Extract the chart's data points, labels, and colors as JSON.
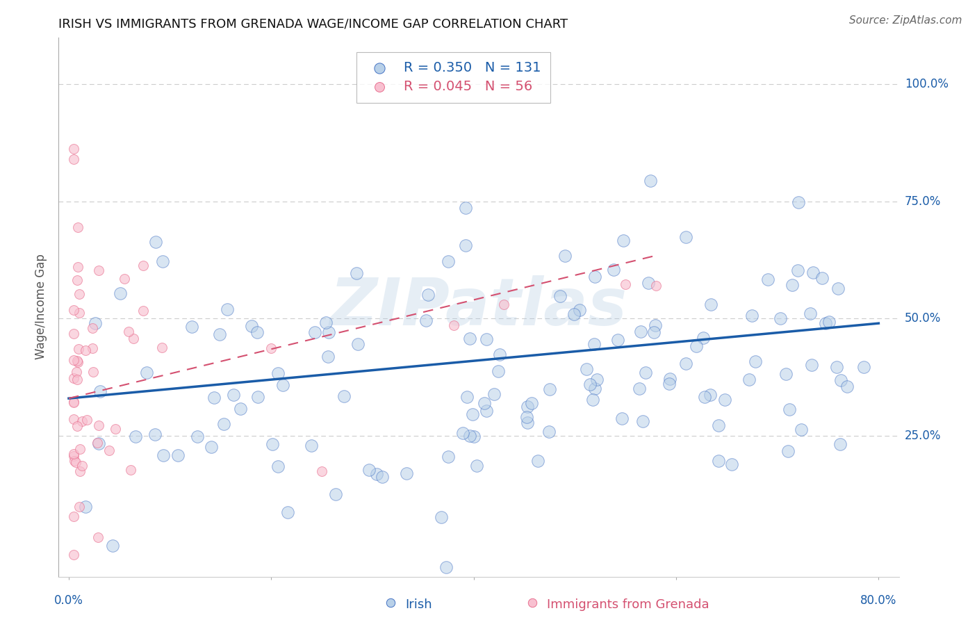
{
  "title": "IRISH VS IMMIGRANTS FROM GRENADA WAGE/INCOME GAP CORRELATION CHART",
  "source": "Source: ZipAtlas.com",
  "ylabel": "Wage/Income Gap",
  "series1_label": "Irish",
  "series2_label": "Immigrants from Grenada",
  "R1": 0.35,
  "N1": 131,
  "R2": 0.045,
  "N2": 56,
  "color1_fill": "#b8d0e8",
  "color1_edge": "#4472c4",
  "color1_line": "#1a5ca8",
  "color2_fill": "#f8c0d0",
  "color2_edge": "#e87090",
  "color2_line": "#d45070",
  "xlim": [
    -0.01,
    0.82
  ],
  "ylim": [
    -0.05,
    1.1
  ],
  "ytick_vals": [
    0.25,
    0.5,
    0.75,
    1.0
  ],
  "ytick_labels": [
    "25.0%",
    "50.0%",
    "75.0%",
    "100.0%"
  ],
  "xtick_vals": [
    0.0,
    0.8
  ],
  "xtick_labels": [
    "0.0%",
    "80.0%"
  ],
  "background_color": "#ffffff",
  "grid_color": "#cccccc",
  "watermark": "ZIPatlas"
}
